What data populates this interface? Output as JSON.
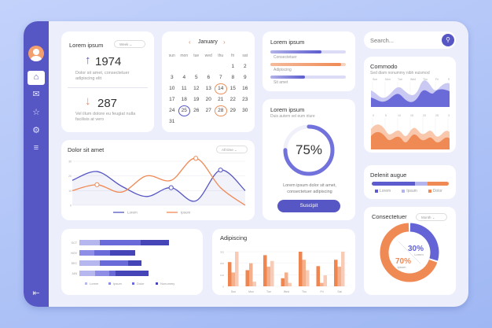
{
  "sidebar": {
    "items": [
      "home-icon",
      "chat-icon",
      "star-icon",
      "gear-icon",
      "menu-icon"
    ],
    "logout": "logout-icon"
  },
  "stats": {
    "title": "Lorem ipsum",
    "dropdown": "Week",
    "up_value": "1974",
    "up_text": "Dolor sit amet, consectetuer adipiscing elit",
    "down_value": "287",
    "down_text": "Vel illum dolore eu feugiat nulla facilisis at vero"
  },
  "calendar": {
    "month": "January",
    "weekdays": [
      "sun",
      "mon",
      "tue",
      "wed",
      "thu",
      "fri",
      "sat"
    ],
    "first_offset": 5,
    "days": 31,
    "highlighted_orange": [
      14,
      28
    ],
    "highlighted_blue": [
      25
    ]
  },
  "progress_list": {
    "title": "Lorem ipsum",
    "items": [
      {
        "label": "Consectetuer",
        "value": 0.68,
        "color": "#5c5ccf"
      },
      {
        "label": "Adipiscing",
        "value": 0.94,
        "color": "#f08a55"
      },
      {
        "label": "Sit amet",
        "value": 0.46,
        "color": "#5c5ccf"
      }
    ]
  },
  "gauge": {
    "title": "Lorem ipsum",
    "subtitle": "Duis autem vel eum iriure",
    "value": "75%",
    "percent": 75,
    "text": "Lorem ipsum dolor sit amet, consectetuer adipiscing",
    "button": "Suscipit"
  },
  "search": {
    "placeholder": "Search..."
  },
  "commodo": {
    "title": "Commodo",
    "subtitle": "Sed diam nonummy nibh euismod",
    "top_labels": [
      "Sun",
      "Mon",
      "Tue",
      "Wed",
      "Thu",
      "Fri",
      "Sat"
    ],
    "bottom_labels": [
      "0",
      "5",
      "10",
      "15",
      "20",
      "25",
      "30"
    ]
  },
  "delenit": {
    "title": "Delenit augue",
    "segments": [
      {
        "name": "Lorem",
        "value": 56,
        "color": "#5c5ccf"
      },
      {
        "name": "Ipsum",
        "value": 16,
        "color": "#b4b4ee"
      },
      {
        "name": "Dolor",
        "value": 28,
        "color": "#f08a55"
      }
    ]
  },
  "donut": {
    "title": "Consectetuer",
    "dropdown": "Month"
  },
  "line": {
    "title": "Dolor sit amet",
    "dropdown": "All time"
  },
  "vbars": {
    "title": "Adipiscing"
  },
  "colors": {
    "accent": "#5656c4",
    "orange": "#f08a55"
  },
  "chart_data": [
    {
      "type": "line",
      "title": "Dolor sit amet",
      "ylim": [
        0,
        30
      ],
      "yticks": [
        0,
        10,
        20,
        30
      ],
      "grid": true,
      "legend": "bottom",
      "series": [
        {
          "name": "Lorem",
          "color": "#5656c4",
          "values": [
            17,
            23,
            13,
            6,
            12,
            3,
            24,
            10
          ]
        },
        {
          "name": "Ipsum",
          "color": "#f08a55",
          "values": [
            10,
            14,
            9,
            20,
            17,
            32,
            12,
            0
          ]
        }
      ]
    },
    {
      "type": "bar",
      "orientation": "horizontal",
      "stacked": true,
      "categories": [
        "OCT",
        "NOV",
        "DEC",
        "JAN"
      ],
      "legend": "bottom",
      "series": [
        {
          "name": "Lorem",
          "color": "#b7b7ef",
          "values": [
            26,
            0,
            26,
            20
          ]
        },
        {
          "name": "Ipsum",
          "color": "#8e8ee6",
          "values": [
            0,
            19,
            0,
            18
          ]
        },
        {
          "name": "Dolor",
          "color": "#6a6ad8",
          "values": [
            52,
            20,
            36,
            8
          ]
        },
        {
          "name": "Nonummy",
          "color": "#4545b8",
          "values": [
            36,
            32,
            17,
            42
          ]
        }
      ]
    },
    {
      "type": "bar",
      "title": "Adipiscing",
      "categories": [
        "Sun",
        "Mon",
        "Tue",
        "Wed",
        "Thu",
        "Fri",
        "Sat"
      ],
      "ylim": [
        0,
        300
      ],
      "yticks": [
        0,
        100,
        200,
        300
      ],
      "series": [
        {
          "color": "#ef8650",
          "values": [
            210,
            140,
            270,
            70,
            300,
            175,
            230
          ]
        },
        {
          "color": "#f4b08c",
          "values": [
            120,
            200,
            170,
            120,
            230,
            30,
            170
          ]
        },
        {
          "color": "#f7cbb5",
          "values": [
            300,
            40,
            220,
            30,
            140,
            95,
            300
          ]
        }
      ]
    },
    {
      "type": "pie",
      "title": "Consectetuer",
      "donut": true,
      "slices": [
        {
          "name": "Lorem",
          "value": 30,
          "label": "30%",
          "color": "#6464d6"
        },
        {
          "name": "Ipsum",
          "value": 70,
          "label": "70%",
          "color": "#f08a55"
        }
      ]
    }
  ]
}
